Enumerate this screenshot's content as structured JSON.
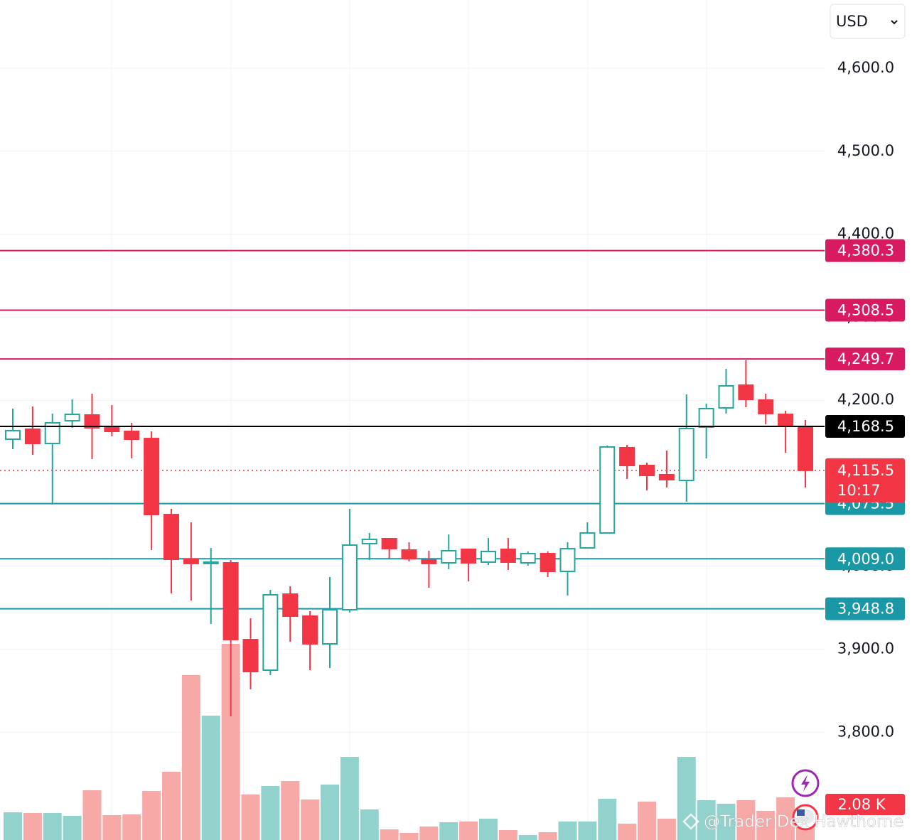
{
  "chart_data": {
    "type": "candlestick",
    "currency": "USD",
    "categories": [
      null,
      null,
      null,
      null,
      null,
      null,
      null,
      null,
      null,
      null,
      null,
      null,
      null,
      null,
      null,
      null,
      null,
      null,
      null,
      null,
      null,
      null,
      null,
      null,
      null,
      null,
      null,
      null,
      null,
      null,
      null,
      null,
      null,
      null,
      null,
      null,
      null,
      null,
      null,
      null,
      null
    ],
    "open": [
      4153.1,
      4165.1,
      4147.9,
      4175.3,
      4182.2,
      4167.6,
      4162.5,
      4153.9,
      4062.3,
      4008.4,
      4003.3,
      4004.1,
      3911.6,
      3874.8,
      3966.4,
      3939.9,
      3906.5,
      3947.6,
      4027.2,
      4033.2,
      4019.5,
      4007.5,
      4004.1,
      4020.4,
      4005.0,
      4020.4,
      4004.1,
      4015.2,
      3993.8,
      4022.1,
      4040.1,
      4142.8,
      4121.4,
      4110.3,
      4103.4,
      4167.6,
      4190.8,
      4218.2,
      4200.2,
      4183.0,
      4167.6
    ],
    "high": [
      4189.9,
      4192.5,
      4183.9,
      4201.0,
      4207.9,
      4194.2,
      4172.8,
      4162.5,
      4069.2,
      4052.9,
      4022.1,
      4007.5,
      3937.3,
      3971.6,
      3975.9,
      3945.9,
      3987.0,
      4069.2,
      4040.1,
      4033.2,
      4028.9,
      4018.7,
      4038.4,
      4021.2,
      4034.1,
      4034.1,
      4017.8,
      4017.8,
      4028.9,
      4052.9,
      4145.4,
      4146.2,
      4124.8,
      4139.4,
      4207.0,
      4195.9,
      4237.8,
      4248.1,
      4207.9,
      4187.3,
      4176.2
    ],
    "low": [
      4141.1,
      4134.2,
      4074.3,
      4166.8,
      4129.1,
      4156.5,
      4130.0,
      4019.5,
      3967.3,
      3958.7,
      3930.5,
      3819.2,
      3851.7,
      3868.8,
      3909.1,
      3874.8,
      3877.4,
      3944.2,
      4007.5,
      4009.2,
      4005.8,
      3974.1,
      3996.4,
      3981.8,
      4001.5,
      3995.5,
      4000.7,
      3987.0,
      3964.7,
      4022.1,
      4040.1,
      4105.1,
      4091.4,
      4094.9,
      4077.7,
      4130.0,
      4183.9,
      4191.6,
      4171.1,
      4136.8,
      4094.9
    ],
    "close": [
      4163.4,
      4147.9,
      4172.8,
      4183.0,
      4166.8,
      4162.5,
      4153.1,
      4062.3,
      4008.4,
      4003.3,
      4005.0,
      3911.6,
      3873.1,
      3965.6,
      3939.9,
      3906.5,
      3947.6,
      4025.5,
      4032.4,
      4021.2,
      4009.2,
      4003.3,
      4018.7,
      4004.1,
      4017.8,
      4005.0,
      4015.2,
      3993.8,
      4021.2,
      4040.1,
      4143.7,
      4121.4,
      4109.4,
      4104.3,
      4165.9,
      4189.9,
      4217.3,
      4201.0,
      4183.9,
      4168.5,
      4115.5
    ],
    "volume": {
      "values": [
        1.95,
        1.9,
        1.9,
        1.7,
        3.5,
        1.75,
        1.8,
        3.45,
        4.8,
        11.6,
        8.75,
        13.8,
        3.2,
        3.8,
        4.15,
        2.85,
        3.9,
        5.85,
        2.15,
        0.75,
        0.5,
        0.95,
        1.25,
        1.3,
        1.5,
        0.7,
        0.35,
        0.55,
        1.3,
        1.3,
        2.9,
        1.15,
        2.7,
        1.5,
        5.85,
        2.8,
        2.55,
        2.8,
        2.05,
        3.0,
        2.08
      ],
      "value_labels": [
        null,
        null,
        null,
        null,
        null,
        null,
        null,
        null,
        null,
        null,
        null,
        null,
        null,
        null,
        null,
        null,
        null,
        null,
        null,
        null,
        null,
        null,
        null,
        null,
        null,
        null,
        null,
        null,
        null,
        null,
        null,
        null,
        null,
        null,
        null,
        null,
        null,
        null,
        null,
        null,
        "2.08 K"
      ],
      "axis": "y2"
    },
    "up_color": "#26a69a",
    "down_color": "#f23645",
    "volume_up_color": "#92d2cc",
    "volume_down_color": "#f7a9a7",
    "ylim": [
      3670.2,
      4682.2
    ],
    "yticks": [
      {
        "value": 3800,
        "label": "3,800.0"
      },
      {
        "value": 3900,
        "label": "3,900.0"
      },
      {
        "value": 4000,
        "label": "4,000.0"
      },
      {
        "value": 4200,
        "label": "4,200.0"
      },
      {
        "value": 4300,
        "label": "4,300.0"
      },
      {
        "value": 4400,
        "label": "4,400.0"
      },
      {
        "value": 4500,
        "label": "4,500.0"
      },
      {
        "value": 4600,
        "label": "4,600.0"
      }
    ],
    "y2lim": [
      0,
      59.1
    ],
    "grid": true,
    "levels": [
      {
        "value": 4380.3,
        "label": "4,380.3",
        "color": "#d81b60"
      },
      {
        "value": 4308.5,
        "label": "4,308.5",
        "color": "#d81b60"
      },
      {
        "value": 4249.7,
        "label": "4,249.7",
        "color": "#d81b60"
      },
      {
        "value": 4075.5,
        "label": "4,075.5",
        "color": "#1a98a6"
      },
      {
        "value": 4009.0,
        "label": "4,009.0",
        "color": "#1a98a6"
      },
      {
        "value": 3948.8,
        "label": "3,948.8",
        "color": "#1a98a6"
      }
    ],
    "price_line": {
      "value": 4168.5,
      "label": "4,168.5",
      "color": "#000000"
    },
    "last_price": {
      "value": 4115.5,
      "label": "4,115.5",
      "countdown": "10:17",
      "color": "#f23645"
    },
    "watermark": "@Trader Dex Hawthorne"
  }
}
